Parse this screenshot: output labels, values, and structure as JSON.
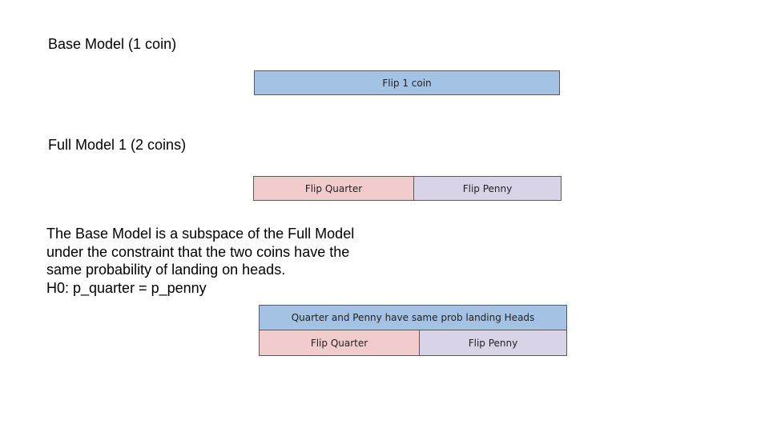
{
  "base_model": {
    "heading": "Base Model (1 coin)",
    "box_label": "Flip 1 coin"
  },
  "full_model": {
    "heading": "Full Model 1 (2 coins)",
    "quarter_label": "Flip Quarter",
    "penny_label": "Flip Penny"
  },
  "explanation": {
    "line1": "The Base Model is a subspace of the Full Model",
    "line2": "under the constraint that the two coins have the",
    "line3": "same probability of landing on heads.",
    "line4": "H0: p_quarter = p_penny"
  },
  "constrained_model": {
    "constraint_label": "Quarter and Penny have same prob landing Heads",
    "quarter_label": "Flip Quarter",
    "penny_label": "Flip Penny"
  },
  "colors": {
    "base_box": "#a4c2e3",
    "quarter_box": "#f2cccc",
    "penny_box": "#d8d3e6"
  }
}
